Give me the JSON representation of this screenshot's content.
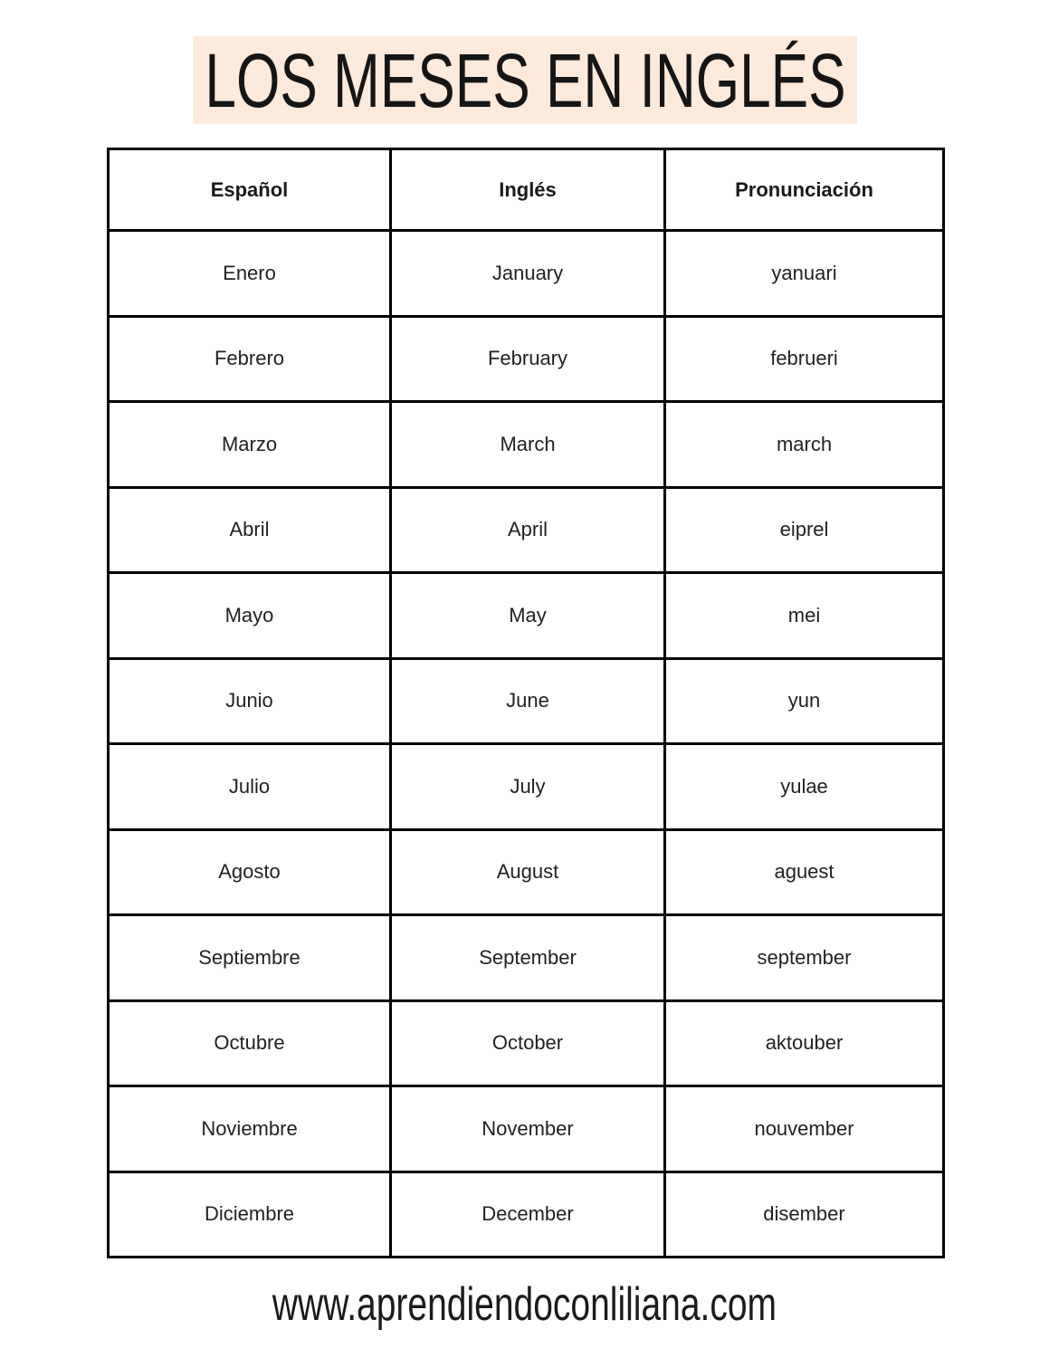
{
  "title": "LOS MESES EN INGLÉS",
  "colors": {
    "banner_background": "#fceadd",
    "table_border": "#000000",
    "text": "#1d1d1d"
  },
  "table": {
    "headers": [
      "Español",
      "Inglés",
      "Pronunciación"
    ],
    "rows": [
      [
        "Enero",
        "January",
        "yanuari"
      ],
      [
        "Febrero",
        "February",
        "februeri"
      ],
      [
        "Marzo",
        "March",
        "march"
      ],
      [
        "Abril",
        "April",
        "eiprel"
      ],
      [
        "Mayo",
        "May",
        "mei"
      ],
      [
        "Junio",
        "June",
        "yun"
      ],
      [
        "Julio",
        "July",
        "yulae"
      ],
      [
        "Agosto",
        "August",
        "aguest"
      ],
      [
        "Septiembre",
        "September",
        "september"
      ],
      [
        "Octubre",
        "October",
        "aktouber"
      ],
      [
        "Noviembre",
        "November",
        "nouvember"
      ],
      [
        "Diciembre",
        "December",
        "disember"
      ]
    ]
  },
  "footer": {
    "url": "www.aprendiendoconliliana.com"
  }
}
